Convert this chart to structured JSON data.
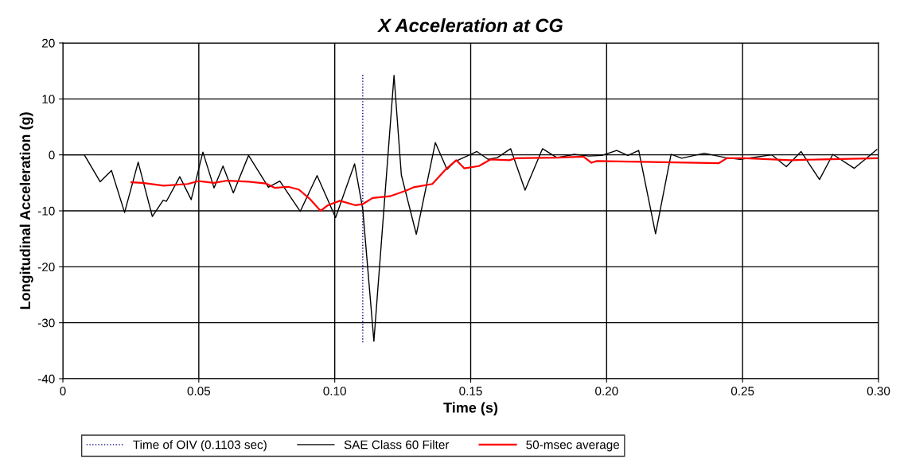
{
  "chart_data": {
    "type": "line",
    "title": "X Acceleration at CG",
    "xlabel": "Time (s)",
    "ylabel": "Longitudinal Acceleration (g)",
    "xlim": [
      0,
      0.3
    ],
    "xticks": [
      0,
      {
        "value": 0.05,
        "label": "0.05"
      },
      {
        "value": 0.1,
        "label": "0.10"
      },
      {
        "value": 0.15,
        "label": "0.15"
      },
      {
        "value": 0.2,
        "label": "0.20"
      },
      {
        "value": 0.25,
        "label": "0.25"
      },
      {
        "value": 0.3,
        "label": "0.30"
      }
    ],
    "ylim": [
      -40,
      20
    ],
    "yticks": [
      -40,
      -30,
      -20,
      -10,
      0,
      10,
      20
    ],
    "grid": true,
    "legend": "bottom",
    "series": [
      {
        "name": "Time of OIV (0.1103 sec)",
        "color": "#000080",
        "line_style": "dotted",
        "x": [
          0.1103,
          0.1103
        ],
        "values": [
          14.3,
          -33.5
        ]
      },
      {
        "name": "SAE Class 60 Filter",
        "color": "#000000",
        "x": [
          0,
          0.0079,
          0.0137,
          0.0179,
          0.0227,
          0.0277,
          0.0329,
          0.0369,
          0.0381,
          0.043,
          0.0472,
          0.0515,
          0.0556,
          0.0589,
          0.0627,
          0.0683,
          0.0756,
          0.0798,
          0.0873,
          0.0935,
          0.1003,
          0.1073,
          0.1103,
          0.1144,
          0.1218,
          0.1245,
          0.13,
          0.137,
          0.1413,
          0.1442,
          0.1523,
          0.1564,
          0.1598,
          0.1647,
          0.17,
          0.1764,
          0.1817,
          0.1881,
          0.1934,
          0.1983,
          0.2037,
          0.2078,
          0.2118,
          0.218,
          0.2237,
          0.2276,
          0.2359,
          0.2437,
          0.2491,
          0.2608,
          0.2661,
          0.2715,
          0.2783,
          0.2832,
          0.2911,
          0.2994
        ],
        "values": [
          0,
          0,
          -4.8,
          -2.8,
          -10.3,
          -1.3,
          -11,
          -8.1,
          -8.3,
          -3.9,
          -8,
          0.5,
          -5.9,
          -2,
          -6.8,
          -0.1,
          -5.8,
          -4.7,
          -10.1,
          -3.7,
          -11.2,
          -1.6,
          -9.7,
          -33.3,
          14.2,
          -3.6,
          -14.2,
          2.2,
          -2.6,
          -1.2,
          0.6,
          -0.8,
          -0.5,
          1.1,
          -6.3,
          1.1,
          -0.5,
          0.1,
          -0.2,
          -0.1,
          0.8,
          -0.1,
          0.8,
          -14.1,
          0.1,
          -0.6,
          0.3,
          -0.5,
          -0.8,
          0,
          -2.1,
          0.6,
          -4.4,
          0.1,
          -2.4,
          0.95
        ]
      },
      {
        "name": "50-msec average",
        "color": "#ff0000",
        "x": [
          0.0252,
          0.0293,
          0.0371,
          0.0459,
          0.0498,
          0.0556,
          0.0605,
          0.0683,
          0.0746,
          0.078,
          0.0829,
          0.0868,
          0.0907,
          0.0948,
          0.0975,
          0.1019,
          0.1076,
          0.1103,
          0.1139,
          0.1203,
          0.1261,
          0.129,
          0.1359,
          0.1408,
          0.1447,
          0.1476,
          0.153,
          0.1574,
          0.1642,
          0.1666,
          0.1817,
          0.1915,
          0.1944,
          0.1964,
          0.2208,
          0.2412,
          0.2442,
          0.251,
          0.2677,
          0.2794,
          0.2994
        ],
        "values": [
          -4.9,
          -5.0,
          -5.5,
          -5.2,
          -4.7,
          -5.0,
          -4.6,
          -4.8,
          -5.1,
          -5.9,
          -5.7,
          -6.2,
          -7.8,
          -10.0,
          -9.0,
          -8.2,
          -9.0,
          -8.8,
          -7.7,
          -7.4,
          -6.4,
          -5.8,
          -5.2,
          -2.6,
          -0.95,
          -2.4,
          -2.0,
          -0.8,
          -0.95,
          -0.6,
          -0.5,
          -0.3,
          -1.4,
          -1.1,
          -1.3,
          -1.5,
          -0.6,
          -0.6,
          -0.95,
          -0.8,
          -0.6
        ]
      }
    ]
  }
}
